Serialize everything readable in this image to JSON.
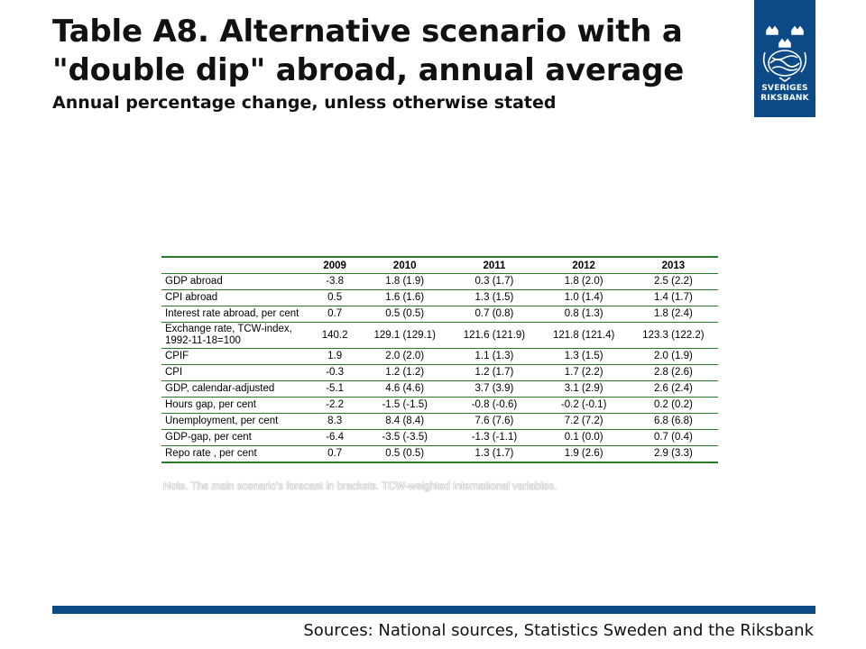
{
  "title": {
    "line1": "Table A8. Alternative scenario with a",
    "line2": "\"double dip\" abroad, annual average",
    "subtitle": "Annual percentage change, unless otherwise stated"
  },
  "logo": {
    "icon": "crown-seal-icon",
    "line1": "SVERIGES",
    "line2": "RIKSBANK",
    "color": "#0b4a87"
  },
  "table": {
    "headers": [
      "",
      "2009",
      "2010",
      "2011",
      "2012",
      "2013"
    ],
    "rows": [
      {
        "label": "GDP abroad",
        "values": [
          "-3.8",
          "1.8 (1.9)",
          "0.3 (1.7)",
          "1.8 (2.0)",
          "2.5 (2.2)"
        ]
      },
      {
        "label": "CPI abroad",
        "values": [
          "0.5",
          "1.6 (1.6)",
          "1.3 (1.5)",
          "1.0 (1.4)",
          "1.4 (1.7)"
        ]
      },
      {
        "label": "Interest rate abroad, per cent",
        "values": [
          "0.7",
          "0.5 (0.5)",
          "0.7 (0.8)",
          "0.8 (1.3)",
          "1.8 (2.4)"
        ]
      },
      {
        "label": "Exchange rate, TCW-index, 1992-11-18=100",
        "values": [
          "140.2",
          "129.1 (129.1)",
          "121.6 (121.9)",
          "121.8 (121.4)",
          "123.3 (122.2)"
        ]
      },
      {
        "label": "CPIF",
        "values": [
          "1.9",
          "2.0 (2.0)",
          "1.1 (1.3)",
          "1.3 (1.5)",
          "2.0 (1.9)"
        ]
      },
      {
        "label": "CPI",
        "values": [
          "-0.3",
          "1.2 (1.2)",
          "1.2 (1.7)",
          "1.7 (2.2)",
          "2.8 (2.6)"
        ]
      },
      {
        "label": "GDP, calendar-adjusted",
        "values": [
          "-5.1",
          "4.6 (4.6)",
          "3.7 (3.9)",
          "3.1 (2.9)",
          "2.6 (2.4)"
        ]
      },
      {
        "label": "Hours gap, per cent",
        "values": [
          "-2.2",
          "-1.5 (-1.5)",
          "-0.8 (-0.6)",
          "-0.2 (-0.1)",
          "0.2 (0.2)"
        ]
      },
      {
        "label": "Unemployment, per cent",
        "values": [
          "8.3",
          "8.4 (8.4)",
          "7.6 (7.6)",
          "7.2 (7.2)",
          "6.8 (6.8)"
        ]
      },
      {
        "label": "GDP-gap, per cent",
        "values": [
          "-6.4",
          "-3.5 (-3.5)",
          "-1.3 (-1.1)",
          "0.1 (0.0)",
          "0.7 (0.4)"
        ]
      },
      {
        "label": "Repo rate , per cent",
        "values": [
          "0.7",
          "0.5 (0.5)",
          "1.3 (1.7)",
          "1.9 (2.6)",
          "2.9 (3.3)"
        ]
      }
    ],
    "rule_color": "#2b7a2b"
  },
  "note": "Note. The main scenario's forecast in brackets. TCW-weighted international variables.",
  "footer": {
    "sources": "Sources: National sources, Statistics Sweden and the Riksbank",
    "bar_color": "#0b4a87"
  }
}
